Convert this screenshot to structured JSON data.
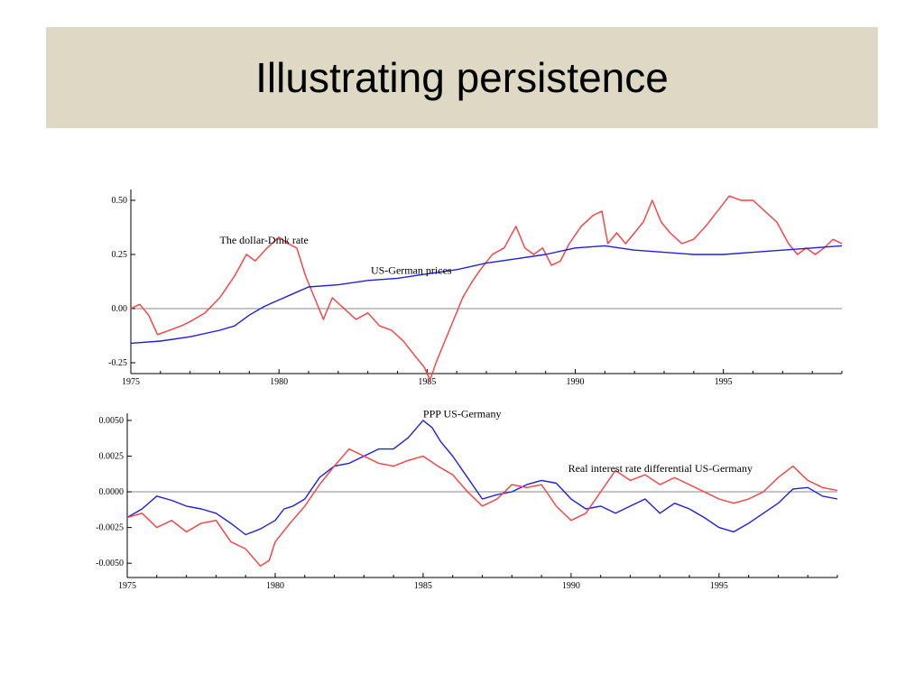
{
  "slide": {
    "title": "Illustrating persistence"
  },
  "chart_data": [
    {
      "type": "line",
      "xlim": [
        1975,
        1999
      ],
      "ylim": [
        -0.3,
        0.55
      ],
      "x_ticks": [
        "1975",
        "1980",
        "1985",
        "1990",
        "1995"
      ],
      "y_ticks": [
        "0.50",
        "0.25",
        "0.00",
        "-0.25"
      ],
      "zero_line": true,
      "colors": {
        "red": "#ff3b3b",
        "blue": "#1f1fe0",
        "axis": "#000000",
        "zero": "#888888"
      },
      "annotations": [
        {
          "text": "The dollar-Dmk rate",
          "x": 1978.0,
          "y": 0.3
        },
        {
          "text": "US-German prices",
          "x": 1983.1,
          "y": 0.16
        }
      ],
      "series": [
        {
          "color": "red",
          "points": [
            [
              1975,
              0.0
            ],
            [
              1975.3,
              0.02
            ],
            [
              1975.6,
              -0.03
            ],
            [
              1975.9,
              -0.12
            ],
            [
              1976.3,
              -0.1
            ],
            [
              1976.7,
              -0.08
            ],
            [
              1977.0,
              -0.06
            ],
            [
              1977.5,
              -0.02
            ],
            [
              1978.0,
              0.05
            ],
            [
              1978.5,
              0.15
            ],
            [
              1978.9,
              0.25
            ],
            [
              1979.2,
              0.22
            ],
            [
              1979.6,
              0.28
            ],
            [
              1980.0,
              0.33
            ],
            [
              1980.3,
              0.3
            ],
            [
              1980.6,
              0.28
            ],
            [
              1980.9,
              0.15
            ],
            [
              1981.2,
              0.05
            ],
            [
              1981.5,
              -0.05
            ],
            [
              1981.8,
              0.05
            ],
            [
              1982.2,
              0.0
            ],
            [
              1982.6,
              -0.05
            ],
            [
              1983.0,
              -0.02
            ],
            [
              1983.4,
              -0.08
            ],
            [
              1983.8,
              -0.1
            ],
            [
              1984.2,
              -0.15
            ],
            [
              1984.6,
              -0.22
            ],
            [
              1984.9,
              -0.27
            ],
            [
              1985.1,
              -0.33
            ],
            [
              1985.3,
              -0.25
            ],
            [
              1985.6,
              -0.15
            ],
            [
              1985.9,
              -0.05
            ],
            [
              1986.2,
              0.05
            ],
            [
              1986.5,
              0.12
            ],
            [
              1986.8,
              0.18
            ],
            [
              1987.2,
              0.25
            ],
            [
              1987.6,
              0.28
            ],
            [
              1988.0,
              0.38
            ],
            [
              1988.3,
              0.28
            ],
            [
              1988.6,
              0.25
            ],
            [
              1988.9,
              0.28
            ],
            [
              1989.2,
              0.2
            ],
            [
              1989.5,
              0.22
            ],
            [
              1989.8,
              0.3
            ],
            [
              1990.2,
              0.38
            ],
            [
              1990.6,
              0.43
            ],
            [
              1990.9,
              0.45
            ],
            [
              1991.1,
              0.3
            ],
            [
              1991.4,
              0.35
            ],
            [
              1991.7,
              0.3
            ],
            [
              1992.0,
              0.35
            ],
            [
              1992.3,
              0.4
            ],
            [
              1992.6,
              0.5
            ],
            [
              1992.9,
              0.4
            ],
            [
              1993.2,
              0.35
            ],
            [
              1993.6,
              0.3
            ],
            [
              1994.0,
              0.32
            ],
            [
              1994.4,
              0.38
            ],
            [
              1994.8,
              0.45
            ],
            [
              1995.2,
              0.52
            ],
            [
              1995.6,
              0.5
            ],
            [
              1996.0,
              0.5
            ],
            [
              1996.4,
              0.45
            ],
            [
              1996.8,
              0.4
            ],
            [
              1997.2,
              0.3
            ],
            [
              1997.5,
              0.25
            ],
            [
              1997.8,
              0.28
            ],
            [
              1998.1,
              0.25
            ],
            [
              1998.4,
              0.28
            ],
            [
              1998.7,
              0.32
            ],
            [
              1999,
              0.3
            ]
          ]
        },
        {
          "color": "blue",
          "points": [
            [
              1975,
              -0.16
            ],
            [
              1976,
              -0.15
            ],
            [
              1977,
              -0.13
            ],
            [
              1978,
              -0.1
            ],
            [
              1978.5,
              -0.08
            ],
            [
              1979,
              -0.03
            ],
            [
              1979.5,
              0.01
            ],
            [
              1980,
              0.04
            ],
            [
              1980.5,
              0.07
            ],
            [
              1981,
              0.1
            ],
            [
              1982,
              0.11
            ],
            [
              1983,
              0.13
            ],
            [
              1984,
              0.14
            ],
            [
              1985,
              0.16
            ],
            [
              1986,
              0.18
            ],
            [
              1987,
              0.21
            ],
            [
              1988,
              0.23
            ],
            [
              1989,
              0.25
            ],
            [
              1990,
              0.28
            ],
            [
              1991,
              0.29
            ],
            [
              1992,
              0.27
            ],
            [
              1993,
              0.26
            ],
            [
              1994,
              0.25
            ],
            [
              1995,
              0.25
            ],
            [
              1996,
              0.26
            ],
            [
              1997,
              0.27
            ],
            [
              1998,
              0.28
            ],
            [
              1999,
              0.29
            ]
          ]
        }
      ]
    },
    {
      "type": "line",
      "xlim": [
        1975,
        1999
      ],
      "ylim": [
        -0.006,
        0.0055
      ],
      "x_ticks": [
        "1975",
        "1980",
        "1985",
        "1990",
        "1995"
      ],
      "y_ticks": [
        "0.0050",
        "0.0025",
        "0.0000",
        "-0.0025",
        "-0.0050"
      ],
      "zero_line": true,
      "colors": {
        "red": "#ff3b3b",
        "blue": "#1f1fe0",
        "axis": "#000000",
        "zero": "#888888"
      },
      "annotations": [
        {
          "text": "PPP US-Germany",
          "x": 1985.0,
          "y": 0.0052
        },
        {
          "text": "Real interest rate differential US-Germany",
          "x": 1989.9,
          "y": 0.0014
        }
      ],
      "series": [
        {
          "color": "blue",
          "points": [
            [
              1975,
              -0.0018
            ],
            [
              1975.5,
              -0.0012
            ],
            [
              1976,
              -0.0003
            ],
            [
              1976.5,
              -0.0006
            ],
            [
              1977,
              -0.001
            ],
            [
              1977.5,
              -0.0012
            ],
            [
              1978,
              -0.0015
            ],
            [
              1978.5,
              -0.0022
            ],
            [
              1979,
              -0.003
            ],
            [
              1979.5,
              -0.0026
            ],
            [
              1980,
              -0.002
            ],
            [
              1980.3,
              -0.0012
            ],
            [
              1980.6,
              -0.001
            ],
            [
              1981,
              -0.0005
            ],
            [
              1981.5,
              0.001
            ],
            [
              1982,
              0.0018
            ],
            [
              1982.5,
              0.002
            ],
            [
              1983,
              0.0025
            ],
            [
              1983.5,
              0.003
            ],
            [
              1984,
              0.003
            ],
            [
              1984.5,
              0.0038
            ],
            [
              1985,
              0.005
            ],
            [
              1985.3,
              0.0045
            ],
            [
              1985.6,
              0.0035
            ],
            [
              1986,
              0.0025
            ],
            [
              1986.5,
              0.001
            ],
            [
              1987,
              -0.0005
            ],
            [
              1987.5,
              -0.0002
            ],
            [
              1988,
              0.0
            ],
            [
              1988.5,
              0.0005
            ],
            [
              1989,
              0.0008
            ],
            [
              1989.5,
              0.0006
            ],
            [
              1990,
              -0.0005
            ],
            [
              1990.5,
              -0.0012
            ],
            [
              1991,
              -0.001
            ],
            [
              1991.5,
              -0.0015
            ],
            [
              1992,
              -0.001
            ],
            [
              1992.5,
              -0.0005
            ],
            [
              1993,
              -0.0015
            ],
            [
              1993.5,
              -0.0008
            ],
            [
              1994,
              -0.0012
            ],
            [
              1994.5,
              -0.0018
            ],
            [
              1995,
              -0.0025
            ],
            [
              1995.5,
              -0.0028
            ],
            [
              1996,
              -0.0022
            ],
            [
              1996.5,
              -0.0015
            ],
            [
              1997,
              -0.0008
            ],
            [
              1997.5,
              0.0002
            ],
            [
              1998,
              0.0003
            ],
            [
              1998.5,
              -0.0003
            ],
            [
              1999,
              -0.0005
            ]
          ]
        },
        {
          "color": "red",
          "points": [
            [
              1975,
              -0.0018
            ],
            [
              1975.5,
              -0.0015
            ],
            [
              1976,
              -0.0025
            ],
            [
              1976.5,
              -0.002
            ],
            [
              1977,
              -0.0028
            ],
            [
              1977.5,
              -0.0022
            ],
            [
              1978,
              -0.002
            ],
            [
              1978.5,
              -0.0035
            ],
            [
              1979,
              -0.004
            ],
            [
              1979.5,
              -0.0052
            ],
            [
              1979.8,
              -0.0048
            ],
            [
              1980,
              -0.0035
            ],
            [
              1980.5,
              -0.0022
            ],
            [
              1981,
              -0.001
            ],
            [
              1981.5,
              0.0005
            ],
            [
              1982,
              0.0018
            ],
            [
              1982.5,
              0.003
            ],
            [
              1983,
              0.0025
            ],
            [
              1983.5,
              0.002
            ],
            [
              1984,
              0.0018
            ],
            [
              1984.5,
              0.0022
            ],
            [
              1985,
              0.0025
            ],
            [
              1985.5,
              0.0018
            ],
            [
              1986,
              0.0012
            ],
            [
              1986.5,
              0.0
            ],
            [
              1987,
              -0.001
            ],
            [
              1987.5,
              -0.0005
            ],
            [
              1988,
              0.0005
            ],
            [
              1988.5,
              0.0003
            ],
            [
              1989,
              0.0005
            ],
            [
              1989.5,
              -0.001
            ],
            [
              1990,
              -0.002
            ],
            [
              1990.5,
              -0.0015
            ],
            [
              1991,
              0.0
            ],
            [
              1991.5,
              0.0015
            ],
            [
              1992,
              0.0008
            ],
            [
              1992.5,
              0.0012
            ],
            [
              1993,
              0.0005
            ],
            [
              1993.5,
              0.001
            ],
            [
              1994,
              0.0005
            ],
            [
              1994.5,
              0.0
            ],
            [
              1995,
              -0.0005
            ],
            [
              1995.5,
              -0.0008
            ],
            [
              1996,
              -0.0005
            ],
            [
              1996.5,
              0.0
            ],
            [
              1997,
              0.001
            ],
            [
              1997.5,
              0.0018
            ],
            [
              1998,
              0.0008
            ],
            [
              1998.5,
              0.0003
            ],
            [
              1999,
              0.0001
            ]
          ]
        }
      ]
    }
  ]
}
